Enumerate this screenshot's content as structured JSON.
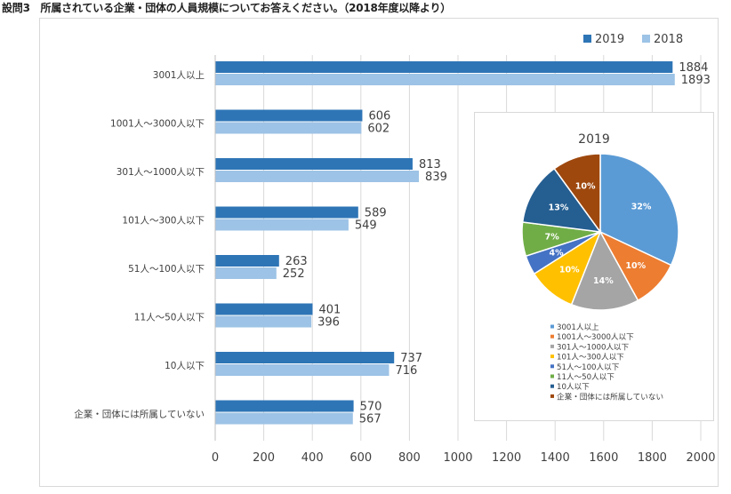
{
  "page_title": "設問3　所属されている企業・団体の人員規模についてお答えください。（2018年度以降より）",
  "chart_data": [
    {
      "type": "bar",
      "orientation": "horizontal",
      "categories": [
        "3001人以上",
        "1001人～3000人以下",
        "301人～1000人以下",
        "101人～300人以下",
        "51人～100人以下",
        "11人～50人以下",
        "10人以下",
        "企業・団体には所属していない"
      ],
      "series": [
        {
          "name": "2019",
          "color": "#2e75b6",
          "values": [
            1884,
            606,
            813,
            589,
            263,
            401,
            737,
            570
          ]
        },
        {
          "name": "2018",
          "color": "#9dc3e6",
          "values": [
            1893,
            602,
            839,
            549,
            252,
            396,
            716,
            567
          ]
        }
      ],
      "xlim": [
        0,
        2000
      ],
      "x_ticks": [
        0,
        200,
        400,
        600,
        800,
        1000,
        1200,
        1400,
        1600,
        1800,
        2000
      ],
      "grid": true,
      "legend": "top-right",
      "data_labels": true
    },
    {
      "type": "pie",
      "title": "2019",
      "labels": [
        "3001人以上",
        "1001人～3000人以下",
        "301人～1000人以下",
        "101人～300人以下",
        "51人～100人以下",
        "11人～50人以下",
        "10人以下",
        "企業・団体には所属していない"
      ],
      "values": [
        32,
        10,
        14,
        10,
        4,
        7,
        13,
        10
      ],
      "value_labels": [
        "32%",
        "10%",
        "14%",
        "10%",
        "4%",
        "7%",
        "13%",
        "10%"
      ],
      "colors": [
        "#5b9bd5",
        "#ed7d31",
        "#a5a5a5",
        "#ffc000",
        "#4472c4",
        "#70ad47",
        "#255e91",
        "#9e480e"
      ],
      "legend": "bottom"
    }
  ]
}
